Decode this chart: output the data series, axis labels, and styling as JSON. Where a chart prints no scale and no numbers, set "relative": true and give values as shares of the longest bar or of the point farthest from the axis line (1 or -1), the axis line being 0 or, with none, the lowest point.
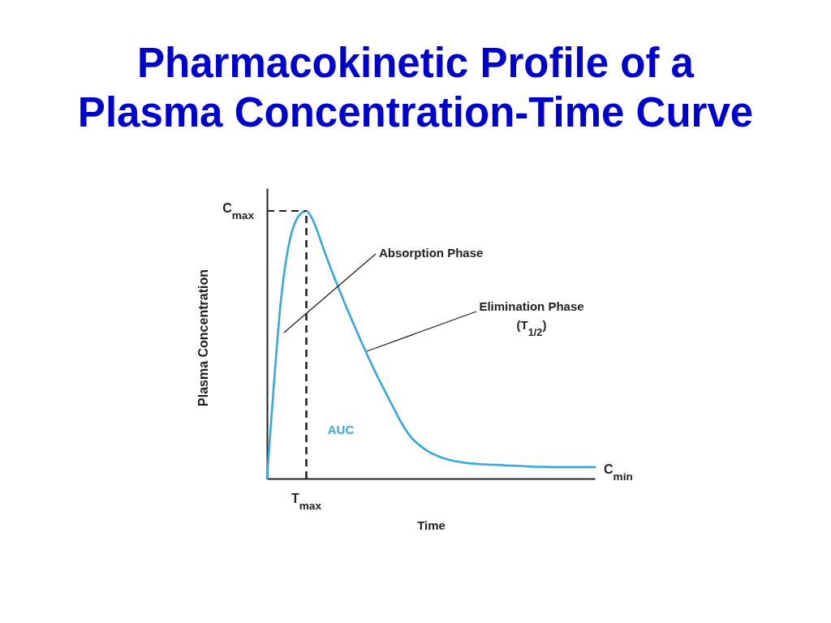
{
  "chart_data": {
    "type": "line",
    "title": "Pharmacokinetic Profile of a\nPlasma Concentration-Time Curve",
    "xlabel": "Time",
    "ylabel": "Plasma Concentration",
    "relative": true,
    "color": "#38a8d8",
    "categories": [
      null,
      null,
      null,
      null,
      null,
      null,
      null,
      null,
      null,
      null,
      null,
      null,
      null,
      null,
      null,
      null,
      null,
      null,
      null,
      null,
      null,
      null,
      null,
      null,
      null,
      null,
      null,
      null,
      null,
      null,
      null,
      null,
      null,
      null,
      null,
      null,
      null,
      null,
      null,
      null,
      null,
      null,
      null,
      null,
      null,
      null,
      null,
      null,
      null,
      null,
      null,
      null,
      null,
      null,
      null,
      null,
      null,
      null,
      null,
      null,
      null,
      null,
      null,
      null,
      null,
      null,
      null,
      null,
      null,
      null,
      null,
      null,
      null,
      null,
      null,
      null,
      null,
      null,
      null,
      null,
      null,
      null,
      null,
      null,
      null,
      null,
      null,
      null,
      null,
      null,
      null,
      null,
      null,
      null,
      null,
      null,
      null,
      null,
      null,
      null,
      null
    ],
    "values": [
      0,
      0.17,
      0.335,
      0.495,
      0.635,
      0.745,
      0.83,
      0.893,
      0.938,
      0.968,
      0.986,
      0.996,
      1,
      0.988,
      0.966,
      0.936,
      0.902,
      0.867,
      0.833,
      0.8,
      0.768,
      0.737,
      0.707,
      0.677,
      0.647,
      0.618,
      0.589,
      0.561,
      0.533,
      0.505,
      0.478,
      0.451,
      0.425,
      0.399,
      0.374,
      0.35,
      0.326,
      0.302,
      0.278,
      0.255,
      0.231,
      0.209,
      0.188,
      0.17,
      0.154,
      0.141,
      0.13,
      0.12,
      0.111,
      0.103,
      0.096,
      0.09,
      0.085,
      0.08,
      0.076,
      0.072,
      0.069,
      0.066,
      0.064,
      0.062,
      0.06,
      0.058,
      0.057,
      0.056,
      0.055,
      0.054,
      0.053,
      0.053,
      0.052,
      0.052,
      0.051,
      0.051,
      0.05,
      0.049,
      0.049,
      0.048,
      0.048,
      0.047,
      0.047,
      0.046,
      0.045,
      0.045,
      0.044,
      0.044,
      0.044,
      0.044,
      0.043,
      0.043,
      0.043,
      0.043,
      0.043,
      0.043,
      0.043,
      0.043,
      0.043,
      0.043,
      0.043,
      0.043,
      0.043,
      0.043,
      0.043
    ],
    "ref_lines": [
      {
        "axis": "y",
        "value": 1,
        "label": "C$_{max}$",
        "line_style": "dashed",
        "color": "#222222"
      },
      {
        "axis": "x",
        "value": "T$_{max}$",
        "line_style": "dashed",
        "color": "#222222"
      }
    ],
    "annotations": [
      "Absorption Phase",
      "Elimination Phase\n(T$_{1/2}$)",
      "AUC",
      "C$_{min}$"
    ]
  }
}
